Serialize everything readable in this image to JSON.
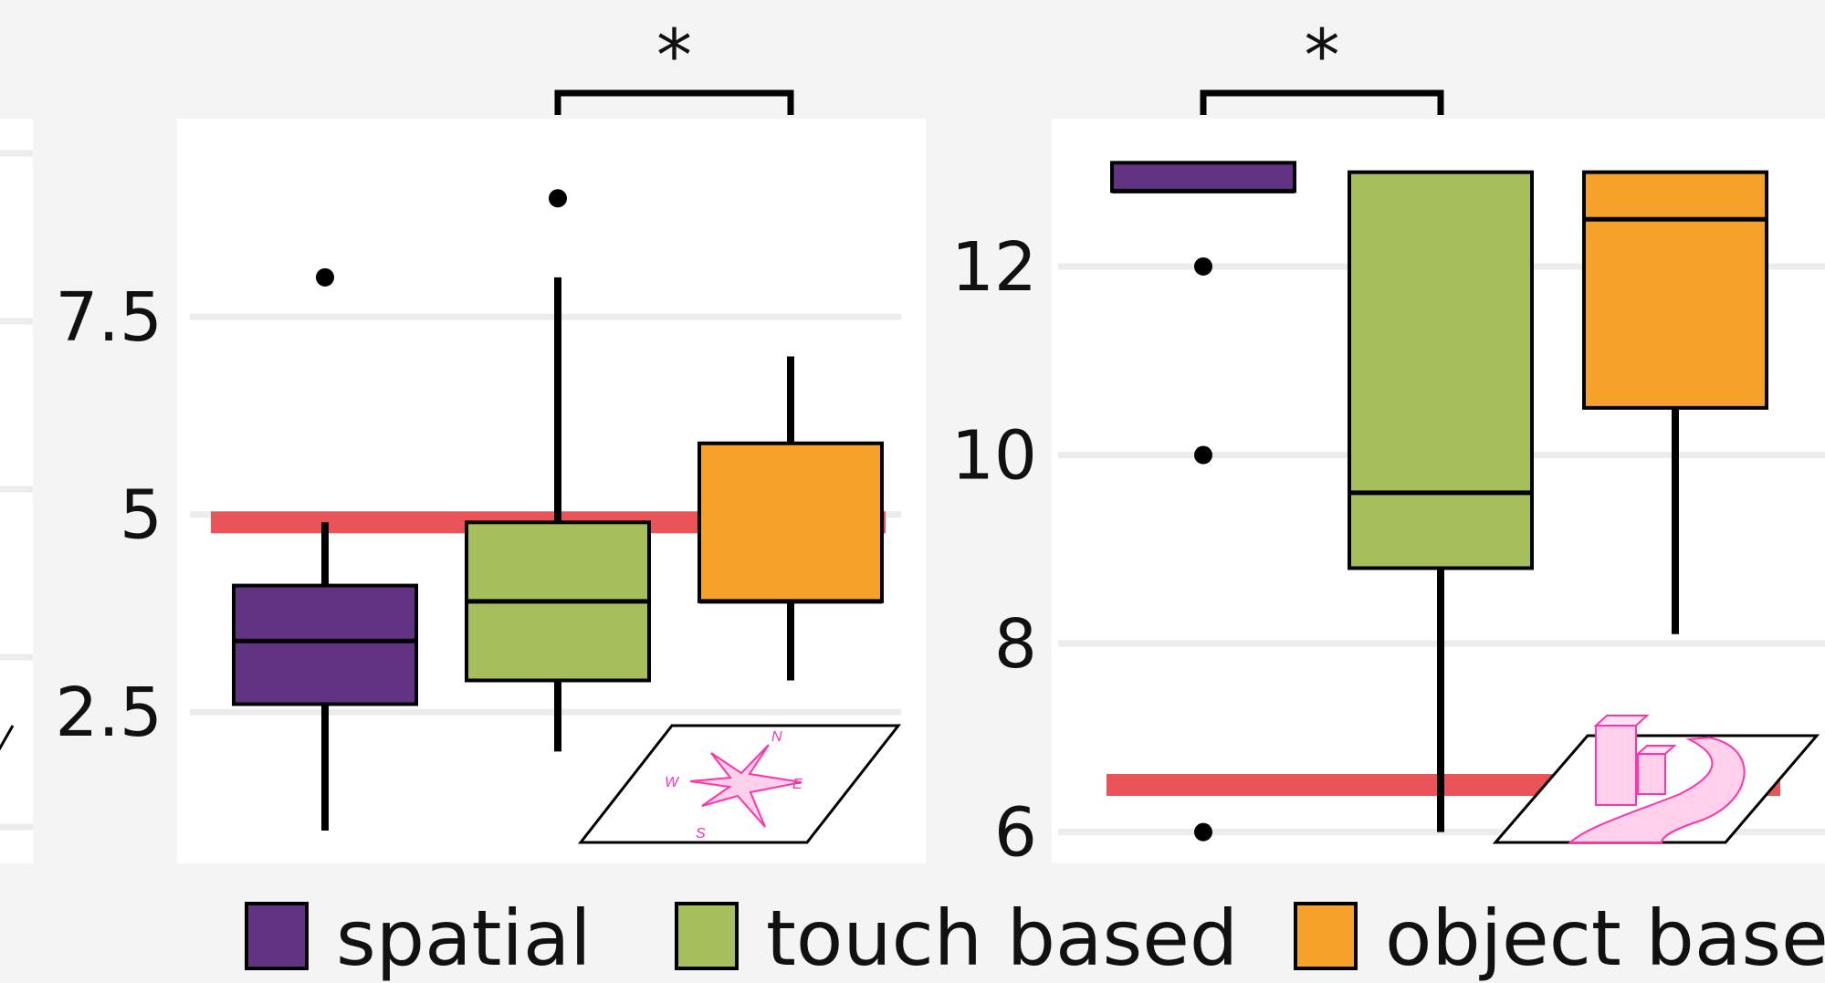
{
  "colors": {
    "spatial": "#633383",
    "touch_based": "#a6bf5c",
    "object_based": "#f5a12a",
    "reference_line": "#ea5358",
    "grid": "#ececec",
    "panel": "#ffffff",
    "background": "#f4f4f4",
    "icon": "#ff33aa"
  },
  "legend": {
    "position": "bottom",
    "items": [
      {
        "label": "spatial",
        "color": "#633383"
      },
      {
        "label": "touch based",
        "color": "#a6bf5c"
      },
      {
        "label": "object based",
        "color": "#f5a12a"
      }
    ]
  },
  "chart_data": [
    {
      "type": "box",
      "categories": [
        "spatial",
        "touch based",
        "object based"
      ],
      "y_ticks": [
        "2.5",
        "5",
        "7.5"
      ],
      "y_tick_values": [
        2.5,
        5,
        7.5
      ],
      "ylim": [
        1.0,
        9.5
      ],
      "grid": true,
      "reference_line": 4.9,
      "icon": "compass-rose-icon",
      "compass_letters": [
        "N",
        "E",
        "S",
        "W"
      ],
      "boxes": [
        {
          "category": "spatial",
          "whisker_low": 1.0,
          "q1": 2.6,
          "median": 3.4,
          "q3": 4.1,
          "whisker_high": 4.9,
          "outliers": [
            8.0
          ]
        },
        {
          "category": "touch based",
          "whisker_low": 2.0,
          "q1": 2.9,
          "median": 3.9,
          "q3": 4.9,
          "whisker_high": 8.0,
          "outliers": [
            9.0
          ]
        },
        {
          "category": "object based",
          "whisker_low": 2.9,
          "q1": 3.9,
          "median": 3.9,
          "q3": 5.9,
          "whisker_high": 7.0,
          "outliers": []
        }
      ],
      "significance": {
        "between": [
          "touch based",
          "object based"
        ],
        "label": "*"
      }
    },
    {
      "type": "box",
      "categories": [
        "spatial",
        "touch based",
        "object based"
      ],
      "y_ticks": [
        "6",
        "8",
        "10",
        "12"
      ],
      "y_tick_values": [
        6,
        8,
        10,
        12
      ],
      "ylim": [
        5.9,
        13.2
      ],
      "grid": true,
      "reference_line": 6.5,
      "icon": "buildings-road-icon",
      "boxes": [
        {
          "category": "spatial",
          "whisker_low": 12.8,
          "q1": 12.8,
          "median": 12.8,
          "q3": 13.1,
          "whisker_high": 13.1,
          "outliers": [
            12.0,
            10.0,
            6.0
          ]
        },
        {
          "category": "touch based",
          "whisker_low": 6.0,
          "q1": 8.8,
          "median": 9.6,
          "q3": 13.0,
          "whisker_high": 13.0,
          "outliers": []
        },
        {
          "category": "object based",
          "whisker_low": 8.1,
          "q1": 10.5,
          "median": 12.5,
          "q3": 13.0,
          "whisker_high": 13.0,
          "outliers": []
        }
      ],
      "significance": {
        "between": [
          "spatial",
          "touch based"
        ],
        "label": "*"
      }
    }
  ]
}
